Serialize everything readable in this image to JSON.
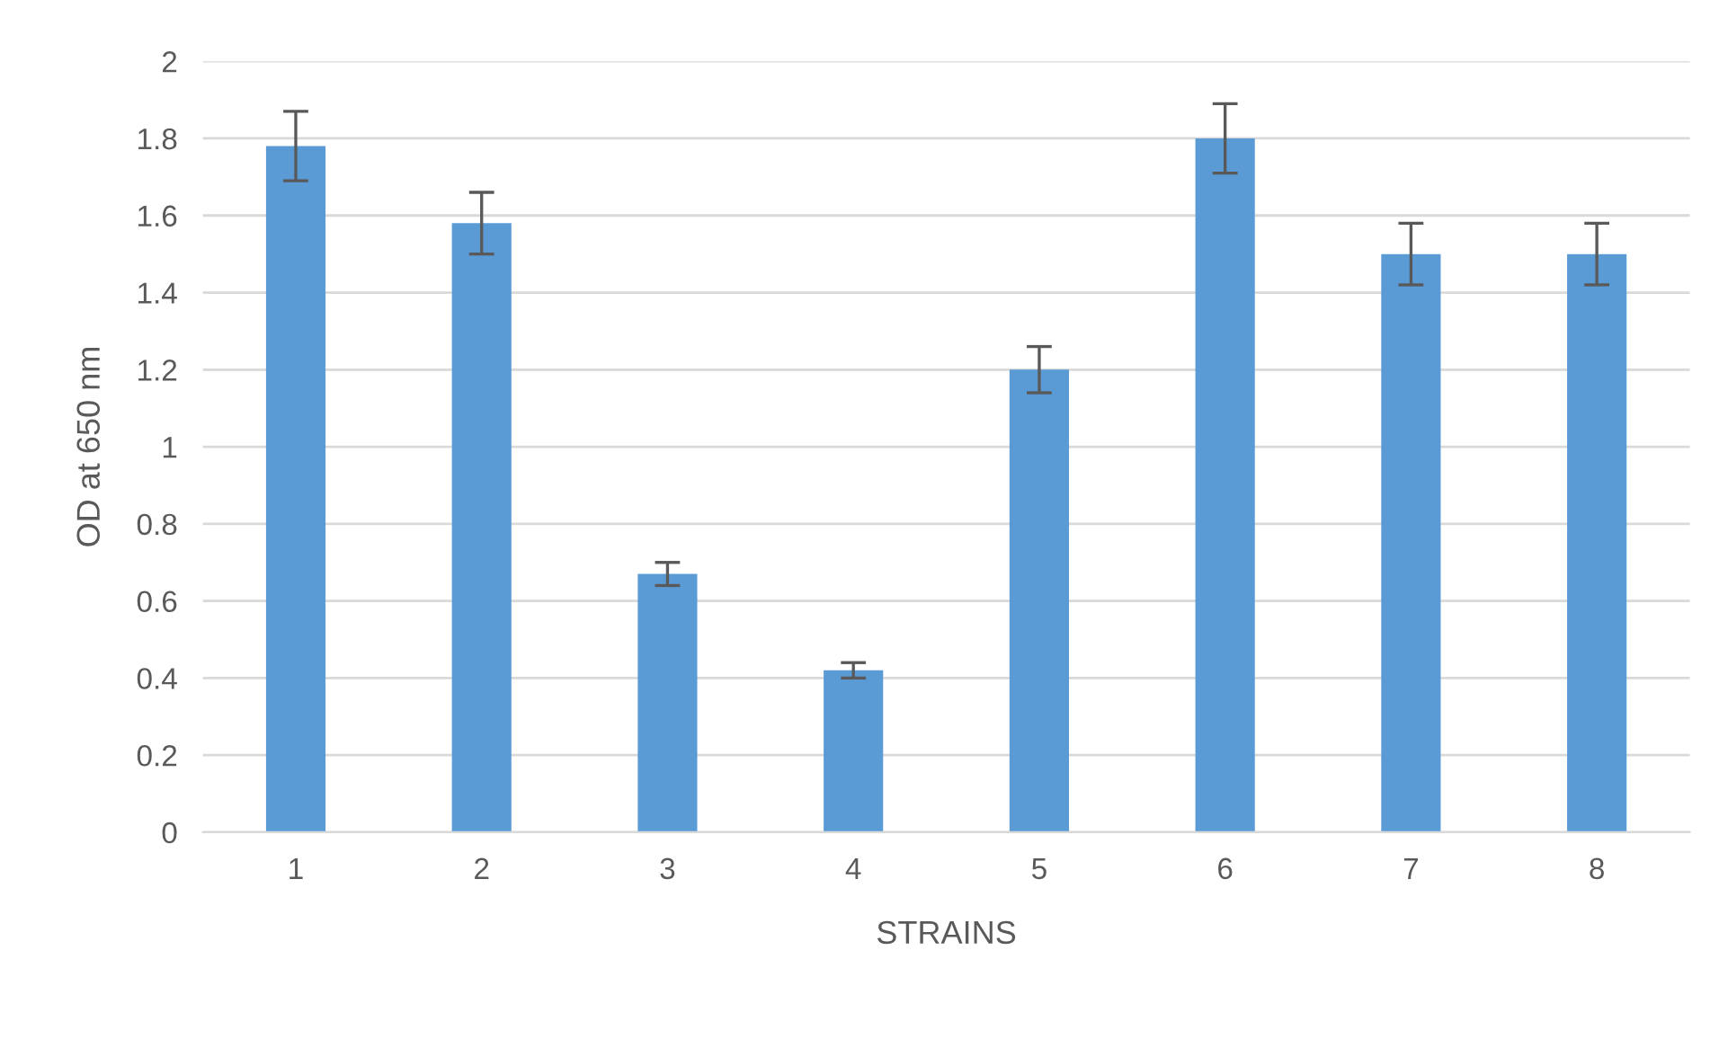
{
  "chart_data": {
    "type": "bar",
    "xlabel": "STRAINS",
    "ylabel": "OD at 650 nm",
    "categories": [
      "1",
      "2",
      "3",
      "4",
      "5",
      "6",
      "7",
      "8"
    ],
    "values": [
      1.78,
      1.58,
      0.67,
      0.42,
      1.2,
      1.8,
      1.5,
      1.5
    ],
    "errors": [
      0.09,
      0.08,
      0.03,
      0.02,
      0.06,
      0.09,
      0.08,
      0.08
    ],
    "color": "#5b9bd5",
    "ylim": [
      0,
      2
    ],
    "yticks": [
      0,
      0.2,
      0.4,
      0.6,
      0.8,
      1,
      1.2,
      1.4,
      1.6,
      1.8,
      2
    ],
    "grid": "y",
    "legend": false
  }
}
